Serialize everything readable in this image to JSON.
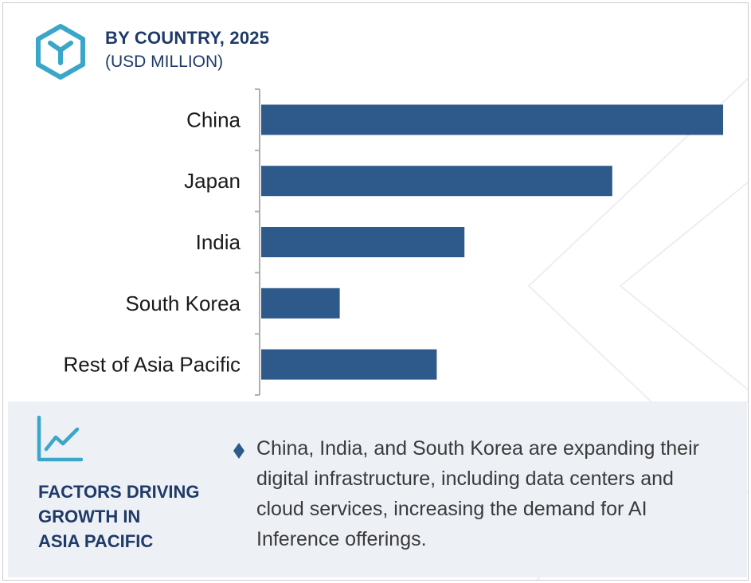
{
  "header": {
    "title": "BY COUNTRY, 2025",
    "subtitle": "(USD MILLION)"
  },
  "chart_data": {
    "type": "bar",
    "orientation": "horizontal",
    "categories": [
      "China",
      "Japan",
      "India",
      "South Korea",
      "Rest of Asia Pacific"
    ],
    "values": [
      100,
      76,
      44,
      17,
      38
    ],
    "xlim": [
      0,
      100
    ],
    "title": "BY COUNTRY, 2025",
    "xlabel": "",
    "ylabel": "",
    "grid": false,
    "color": "#2d5a8b"
  },
  "footer": {
    "title_lines": [
      "FACTORS DRIVING",
      "GROWTH IN",
      "ASIA PACIFIC"
    ],
    "bullet": "China, India, and South Korea are expanding their digital infrastructure, including data centers and cloud services, increasing the demand for AI Inference offerings."
  },
  "colors": {
    "accent": "#2d5a8b",
    "heading": "#1f3a68",
    "icon": "#3aa6c9",
    "panel": "#edf0f5"
  },
  "icons": [
    "cube-logo-icon",
    "trend-chart-icon",
    "diamond-bullet-icon"
  ]
}
